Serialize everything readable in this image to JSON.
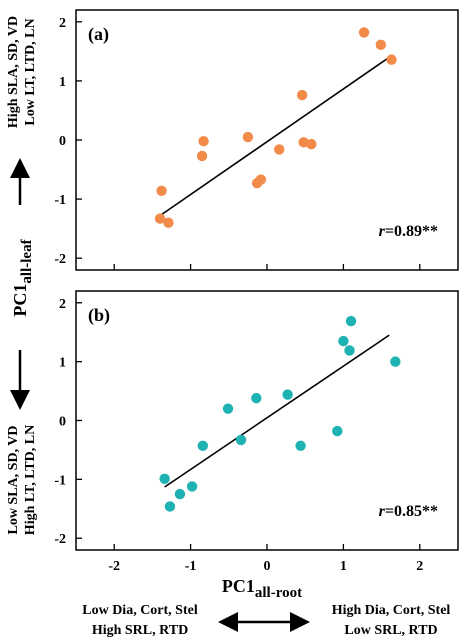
{
  "colors": {
    "panel_a_points": "#F28B4A",
    "panel_b_points": "#1FB2B2",
    "axes": "#000000",
    "fit_line": "#000000"
  },
  "y_axis": {
    "top_label_line1": "High SLA, SD, VD",
    "top_label_line2": "Low LT, LTD, LN",
    "title_main": "PC1",
    "title_sub": "all-leaf",
    "bottom_label_line1": "Low SLA, SD, VD",
    "bottom_label_line2": "High LT, LTD, LN"
  },
  "x_axis": {
    "title_main": "PC1",
    "title_sub": "all-root",
    "left_label_line1": "Low Dia, Cort, Stel",
    "left_label_line2": "High SRL, RTD",
    "right_label_line1": "High Dia, Cort, Stel",
    "right_label_line2": "Low SRL, RTD"
  },
  "chart_data": [
    {
      "type": "scatter",
      "panel_label": "(a)",
      "stat_r": "r",
      "stat_value": "=0.89**",
      "xlim": [
        -2.5,
        2.5
      ],
      "ylim": [
        -2.2,
        2.2
      ],
      "xticks": [
        -2,
        -1,
        0,
        1,
        2
      ],
      "yticks": [
        -2,
        -1,
        0,
        1,
        2
      ],
      "ytick_labels": [
        "-2",
        "-1",
        "0",
        "1",
        "2"
      ],
      "show_x_tick_labels": false,
      "x": [
        -1.38,
        -1.4,
        -1.29,
        -0.83,
        -0.85,
        -0.25,
        -0.13,
        -0.08,
        0.16,
        0.46,
        0.48,
        0.58,
        1.27,
        1.49,
        1.63
      ],
      "y": [
        -0.86,
        -1.33,
        -1.4,
        -0.02,
        -0.27,
        0.05,
        -0.73,
        -0.67,
        -0.16,
        0.76,
        -0.04,
        -0.07,
        1.82,
        1.61,
        1.36
      ],
      "fit_line": {
        "x": [
          -1.4,
          1.6
        ],
        "y": [
          -1.28,
          1.4
        ]
      }
    },
    {
      "type": "scatter",
      "panel_label": "(b)",
      "stat_r": "r",
      "stat_value": "=0.85**",
      "xlim": [
        -2.5,
        2.5
      ],
      "ylim": [
        -2.2,
        2.2
      ],
      "xticks": [
        -2,
        -1,
        0,
        1,
        2
      ],
      "yticks": [
        -2,
        -1,
        0,
        1,
        2
      ],
      "xtick_labels": [
        "-2",
        "-1",
        "0",
        "1",
        "2"
      ],
      "ytick_labels": [
        "-2",
        "-1",
        "0",
        "1",
        "2"
      ],
      "show_x_tick_labels": true,
      "x": [
        -1.34,
        -1.27,
        -1.14,
        -0.98,
        -0.84,
        -0.51,
        -0.34,
        -0.14,
        0.27,
        0.44,
        0.92,
        1.0,
        1.08,
        1.1,
        1.68
      ],
      "y": [
        -0.99,
        -1.46,
        -1.25,
        -1.12,
        -0.43,
        0.2,
        -0.33,
        0.38,
        0.44,
        -0.43,
        -0.18,
        1.35,
        1.19,
        1.69,
        1.0
      ],
      "fit_line": {
        "x": [
          -1.34,
          1.6
        ],
        "y": [
          -1.13,
          1.45
        ]
      }
    }
  ]
}
